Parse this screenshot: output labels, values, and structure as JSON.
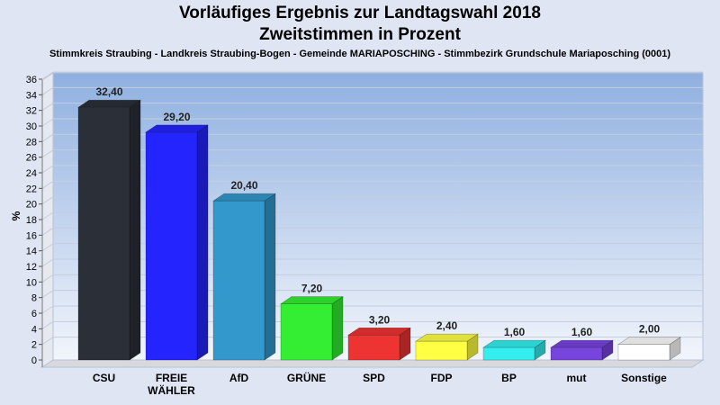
{
  "title_line1": "Vorläufiges Ergebnis zur Landtagswahl 2018",
  "title_line2": "Zweitstimmen in Prozent",
  "subtitle": "Stimmkreis Straubing - Landkreis Straubing-Bogen - Gemeinde MARIAPOSCHING - Stimmbezirk Grundschule Mariaposching (0001)",
  "chart_data": {
    "type": "bar",
    "title": "Vorläufiges Ergebnis zur Landtagswahl 2018",
    "subtitle": "Zweitstimmen in Prozent",
    "xlabel": "",
    "ylabel": "%",
    "ylim": [
      0,
      36
    ],
    "yticks": [
      0,
      2,
      4,
      6,
      8,
      10,
      12,
      14,
      16,
      18,
      20,
      22,
      24,
      26,
      28,
      30,
      32,
      34,
      36
    ],
    "grid": true,
    "categories": [
      "CSU",
      "FREIE WÄHLER",
      "AfD",
      "GRÜNE",
      "SPD",
      "FDP",
      "BP",
      "mut",
      "Sonstige"
    ],
    "category_lines": [
      [
        "CSU"
      ],
      [
        "FREIE",
        "WÄHLER"
      ],
      [
        "AfD"
      ],
      [
        "GRÜNE"
      ],
      [
        "SPD"
      ],
      [
        "FDP"
      ],
      [
        "BP"
      ],
      [
        "mut"
      ],
      [
        "Sonstige"
      ]
    ],
    "values": [
      32.4,
      29.2,
      20.4,
      7.2,
      3.2,
      2.4,
      1.6,
      1.6,
      2.0
    ],
    "value_labels": [
      "32,40",
      "29,20",
      "20,40",
      "7,20",
      "3,20",
      "2,40",
      "1,60",
      "1,60",
      "2,00"
    ],
    "colors": [
      "#2b2f38",
      "#2424ff",
      "#3399cc",
      "#33ee33",
      "#ee3333",
      "#ffff44",
      "#33eeee",
      "#7744dd",
      "#ffffff"
    ]
  }
}
